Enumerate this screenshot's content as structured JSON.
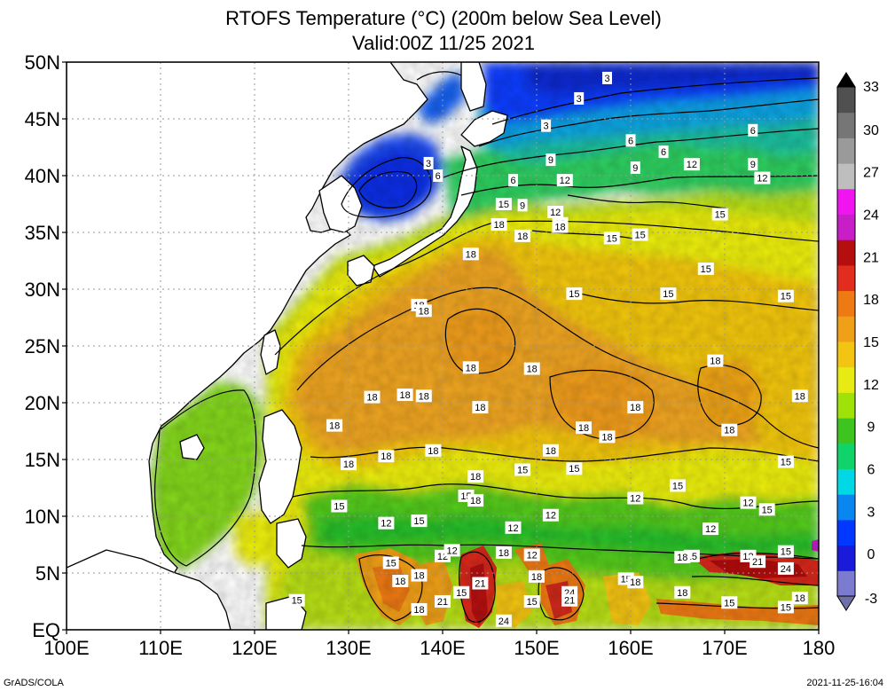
{
  "header": {
    "title": "RTOFS Temperature (°C) (200m below Sea Level)",
    "valid": "Valid:00Z 11/25 2021"
  },
  "map": {
    "x_ticks": [
      "100E",
      "110E",
      "120E",
      "130E",
      "140E",
      "150E",
      "160E",
      "170E",
      "180"
    ],
    "y_ticks": [
      "EQ",
      "5N",
      "10N",
      "15N",
      "20N",
      "25N",
      "30N",
      "35N",
      "40N",
      "45N",
      "50N"
    ],
    "lon_range": [
      100,
      180
    ],
    "lat_range": [
      0,
      50
    ],
    "grid": true,
    "contour_labels": [
      {
        "t": "3",
        "lon": 157.5,
        "lat": 48.6
      },
      {
        "t": "3",
        "lon": 154.5,
        "lat": 46.8
      },
      {
        "t": "3",
        "lon": 151,
        "lat": 44.4
      },
      {
        "t": "3",
        "lon": 138.5,
        "lat": 41.1
      },
      {
        "t": "6",
        "lon": 139.5,
        "lat": 40
      },
      {
        "t": "6",
        "lon": 160,
        "lat": 43.1
      },
      {
        "t": "6",
        "lon": 163.5,
        "lat": 42.1
      },
      {
        "t": "6",
        "lon": 173,
        "lat": 44
      },
      {
        "t": "9",
        "lon": 151.5,
        "lat": 41.4
      },
      {
        "t": "9",
        "lon": 160.5,
        "lat": 40.7
      },
      {
        "t": "12",
        "lon": 166.5,
        "lat": 41
      },
      {
        "t": "9",
        "lon": 173,
        "lat": 41
      },
      {
        "t": "12",
        "lon": 174,
        "lat": 39.8
      },
      {
        "t": "6",
        "lon": 147.5,
        "lat": 39.6
      },
      {
        "t": "12",
        "lon": 153,
        "lat": 39.6
      },
      {
        "t": "15",
        "lon": 146.5,
        "lat": 37.5
      },
      {
        "t": "9",
        "lon": 148.5,
        "lat": 37.4
      },
      {
        "t": "12",
        "lon": 152,
        "lat": 36.8
      },
      {
        "t": "15",
        "lon": 152.5,
        "lat": 35.8
      },
      {
        "t": "15",
        "lon": 169.5,
        "lat": 36.6
      },
      {
        "t": "18",
        "lon": 146,
        "lat": 35.7
      },
      {
        "t": "18",
        "lon": 148.5,
        "lat": 34.7
      },
      {
        "t": "18",
        "lon": 152.5,
        "lat": 35.5
      },
      {
        "t": "15",
        "lon": 158,
        "lat": 34.5
      },
      {
        "t": "15",
        "lon": 161,
        "lat": 34.8
      },
      {
        "t": "18",
        "lon": 143,
        "lat": 33.1
      },
      {
        "t": "15",
        "lon": 168,
        "lat": 31.8
      },
      {
        "t": "15",
        "lon": 154,
        "lat": 29.6
      },
      {
        "t": "15",
        "lon": 164,
        "lat": 29.6
      },
      {
        "t": "15",
        "lon": 176.5,
        "lat": 29.4
      },
      {
        "t": "18",
        "lon": 137.5,
        "lat": 28.6
      },
      {
        "t": "18",
        "lon": 138,
        "lat": 28.1
      },
      {
        "t": "18",
        "lon": 143,
        "lat": 23.1
      },
      {
        "t": "18",
        "lon": 149.5,
        "lat": 23
      },
      {
        "t": "18",
        "lon": 169,
        "lat": 23.7
      },
      {
        "t": "18",
        "lon": 132.5,
        "lat": 20.5
      },
      {
        "t": "18",
        "lon": 136,
        "lat": 20.7
      },
      {
        "t": "18",
        "lon": 138,
        "lat": 20.6
      },
      {
        "t": "18",
        "lon": 178,
        "lat": 20.6
      },
      {
        "t": "18",
        "lon": 144,
        "lat": 19.6
      },
      {
        "t": "18",
        "lon": 160.5,
        "lat": 19.6
      },
      {
        "t": "18",
        "lon": 128.5,
        "lat": 18
      },
      {
        "t": "18",
        "lon": 155,
        "lat": 17.8
      },
      {
        "t": "18",
        "lon": 157.5,
        "lat": 17
      },
      {
        "t": "18",
        "lon": 170.5,
        "lat": 17.6
      },
      {
        "t": "18",
        "lon": 139,
        "lat": 15.8
      },
      {
        "t": "18",
        "lon": 151.5,
        "lat": 15.8
      },
      {
        "t": "18",
        "lon": 130,
        "lat": 14.6
      },
      {
        "t": "18",
        "lon": 134,
        "lat": 15.3
      },
      {
        "t": "15",
        "lon": 148.5,
        "lat": 14.1
      },
      {
        "t": "15",
        "lon": 154,
        "lat": 14.2
      },
      {
        "t": "15",
        "lon": 176.5,
        "lat": 14.8
      },
      {
        "t": "18",
        "lon": 143.5,
        "lat": 13.5
      },
      {
        "t": "15",
        "lon": 142.5,
        "lat": 11.8
      },
      {
        "t": "18",
        "lon": 143.5,
        "lat": 11.4
      },
      {
        "t": "15",
        "lon": 165,
        "lat": 12.7
      },
      {
        "t": "12",
        "lon": 160.5,
        "lat": 11.6
      },
      {
        "t": "12",
        "lon": 172.5,
        "lat": 11.2
      },
      {
        "t": "15",
        "lon": 174.5,
        "lat": 10.6
      },
      {
        "t": "15",
        "lon": 129,
        "lat": 10.9
      },
      {
        "t": "12",
        "lon": 151.5,
        "lat": 10.1
      },
      {
        "t": "12",
        "lon": 134,
        "lat": 9.4
      },
      {
        "t": "15",
        "lon": 137.5,
        "lat": 9.6
      },
      {
        "t": "12",
        "lon": 147.5,
        "lat": 9
      },
      {
        "t": "12",
        "lon": 168.5,
        "lat": 8.9
      },
      {
        "t": "12",
        "lon": 140,
        "lat": 6.5
      },
      {
        "t": "12",
        "lon": 141,
        "lat": 7
      },
      {
        "t": "18",
        "lon": 146.5,
        "lat": 6.8
      },
      {
        "t": "12",
        "lon": 149.5,
        "lat": 6.6
      },
      {
        "t": "15",
        "lon": 176.5,
        "lat": 6.9
      },
      {
        "t": "15",
        "lon": 166.5,
        "lat": 6.5
      },
      {
        "t": "18",
        "lon": 165.5,
        "lat": 6.4
      },
      {
        "t": "12",
        "lon": 172.5,
        "lat": 6.5
      },
      {
        "t": "21",
        "lon": 173.5,
        "lat": 6
      },
      {
        "t": "24",
        "lon": 176.5,
        "lat": 5.4
      },
      {
        "t": "15",
        "lon": 134.5,
        "lat": 5.9
      },
      {
        "t": "18",
        "lon": 137.5,
        "lat": 4.8
      },
      {
        "t": "18",
        "lon": 135.5,
        "lat": 4.3
      },
      {
        "t": "21",
        "lon": 144,
        "lat": 4.1
      },
      {
        "t": "18",
        "lon": 150,
        "lat": 4.7
      },
      {
        "t": "15",
        "lon": 159.5,
        "lat": 4.5
      },
      {
        "t": "18",
        "lon": 160.5,
        "lat": 4.2
      },
      {
        "t": "24",
        "lon": 153.5,
        "lat": 3.3
      },
      {
        "t": "21",
        "lon": 153.5,
        "lat": 2.6
      },
      {
        "t": "15",
        "lon": 142,
        "lat": 3.3
      },
      {
        "t": "18",
        "lon": 165.5,
        "lat": 3.3
      },
      {
        "t": "18",
        "lon": 178,
        "lat": 2.8
      },
      {
        "t": "21",
        "lon": 140,
        "lat": 2.5
      },
      {
        "t": "15",
        "lon": 149.5,
        "lat": 2.5
      },
      {
        "t": "15",
        "lon": 124.5,
        "lat": 2.6
      },
      {
        "t": "18",
        "lon": 137.5,
        "lat": 1.8
      },
      {
        "t": "15",
        "lon": 170.5,
        "lat": 2.4
      },
      {
        "t": "15",
        "lon": 176.5,
        "lat": 2
      },
      {
        "t": "24",
        "lon": 146.5,
        "lat": 0.8
      }
    ]
  },
  "colorbar": {
    "labels": [
      "-3",
      "0",
      "3",
      "6",
      "9",
      "12",
      "15",
      "18",
      "21",
      "24",
      "27",
      "30",
      "33"
    ],
    "levels": [
      -3,
      0,
      3,
      6,
      9,
      12,
      15,
      18,
      21,
      24,
      27,
      30,
      33
    ],
    "colors": [
      "#7b7bd0",
      "#1a1adb",
      "#0038ff",
      "#0a86f0",
      "#00d8e6",
      "#10d46a",
      "#3ec41f",
      "#9ee20a",
      "#e8ea14",
      "#f4c412",
      "#f0a018",
      "#ee7a14",
      "#e02d1e",
      "#b40e0e",
      "#c81ec8",
      "#f014f0",
      "#bebebe",
      "#9a9a9a",
      "#767676",
      "#505050"
    ]
  },
  "footer": {
    "left": "GrADS/COLA",
    "right": "2021-11-25-16:04"
  }
}
